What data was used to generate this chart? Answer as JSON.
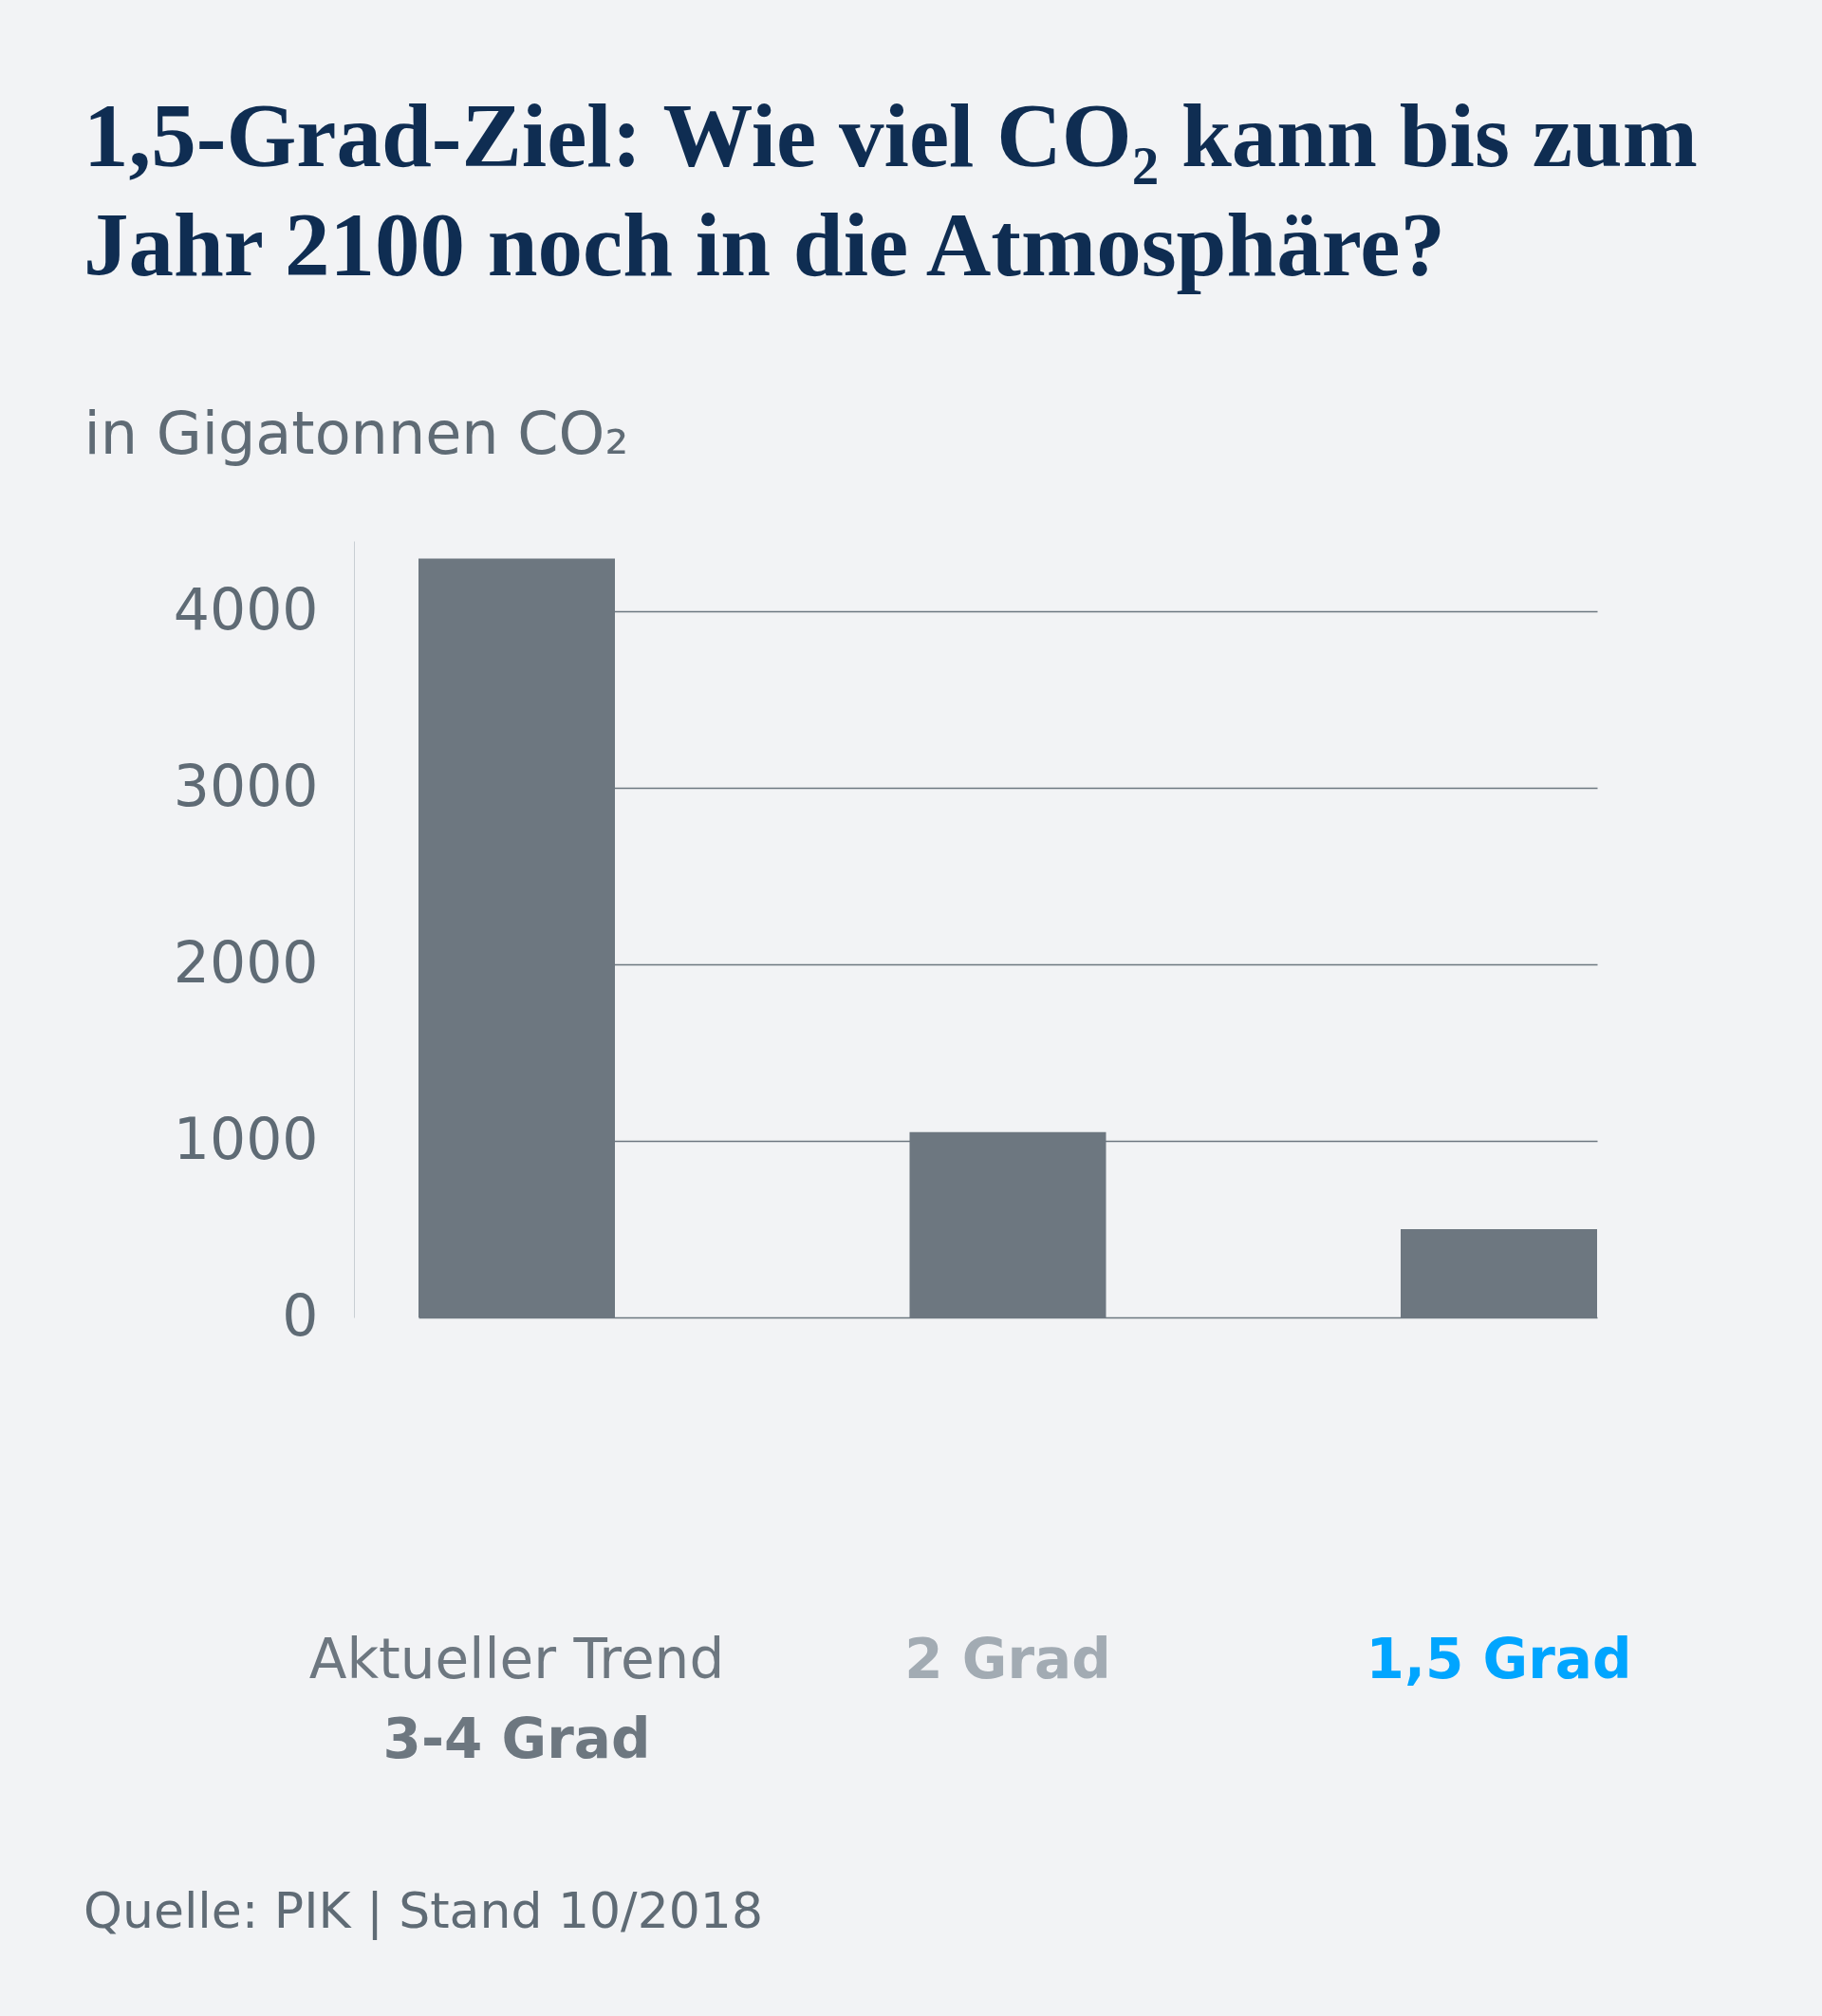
{
  "chart_data": {
    "type": "bar",
    "title": "1,5-Grad-Ziel: Wie viel CO₂ kann bis zum Jahr 2100 noch in die Atmosphäre?",
    "ylabel": "in Gigatonnen CO₂",
    "categories": [
      "Aktueller Trend\n3-4 Grad",
      "2 Grad",
      "1,5 Grad"
    ],
    "values": [
      4300,
      1050,
      500
    ],
    "color": "#6d7780",
    "ylim": [
      0,
      4400
    ],
    "yticks": [
      0,
      1000,
      2000,
      3000,
      4000
    ],
    "grid": "y",
    "annotations": [
      "Quelle: PIK | Stand 10/2018"
    ]
  }
}
